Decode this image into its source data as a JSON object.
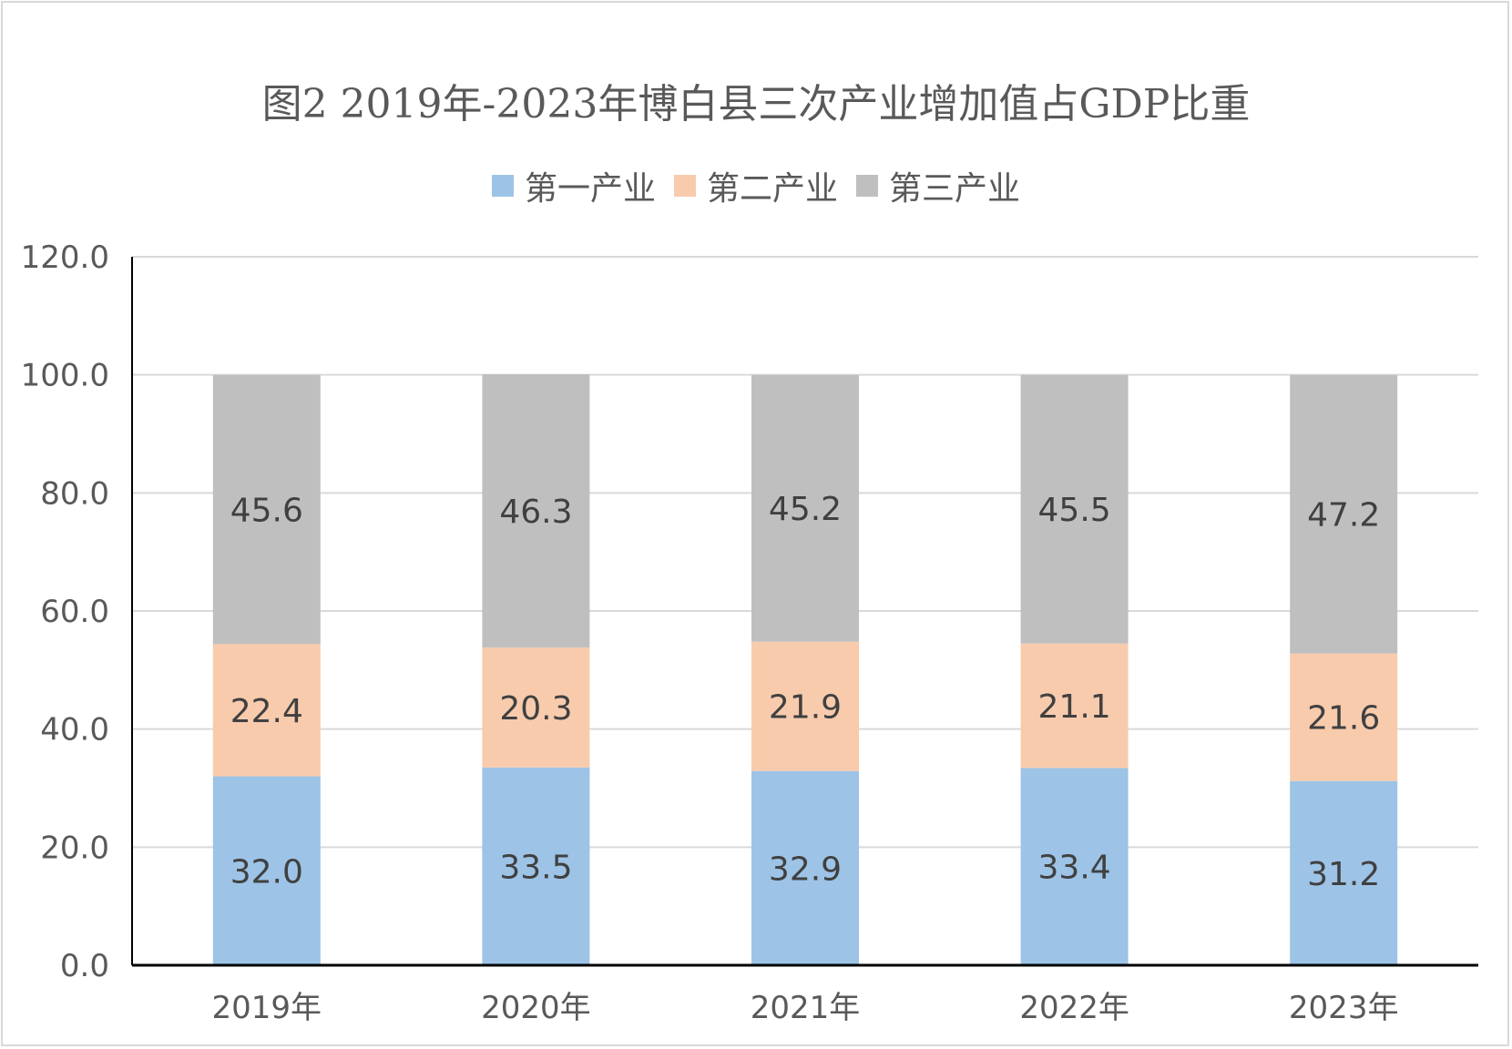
{
  "chart_data": {
    "type": "bar",
    "stacked": true,
    "title": "图2 2019年-2023年博白县三次产业增加值占GDP比重",
    "categories": [
      "2019年",
      "2020年",
      "2021年",
      "2022年",
      "2023年"
    ],
    "series": [
      {
        "name": "第一产业",
        "values": [
          32.0,
          33.5,
          32.9,
          33.4,
          31.2
        ],
        "color": "#9dc3e6"
      },
      {
        "name": "第二产业",
        "values": [
          22.4,
          20.3,
          21.9,
          21.1,
          21.6
        ],
        "color": "#f8cbad"
      },
      {
        "name": "第三产业",
        "values": [
          45.6,
          46.3,
          45.2,
          45.5,
          47.2
        ],
        "color": "#bfbfbf"
      }
    ],
    "ylim": [
      0,
      120
    ],
    "yticks": [
      "0.0",
      "20.0",
      "40.0",
      "60.0",
      "80.0",
      "100.0",
      "120.0"
    ],
    "grid": true,
    "legend_position": "top"
  }
}
